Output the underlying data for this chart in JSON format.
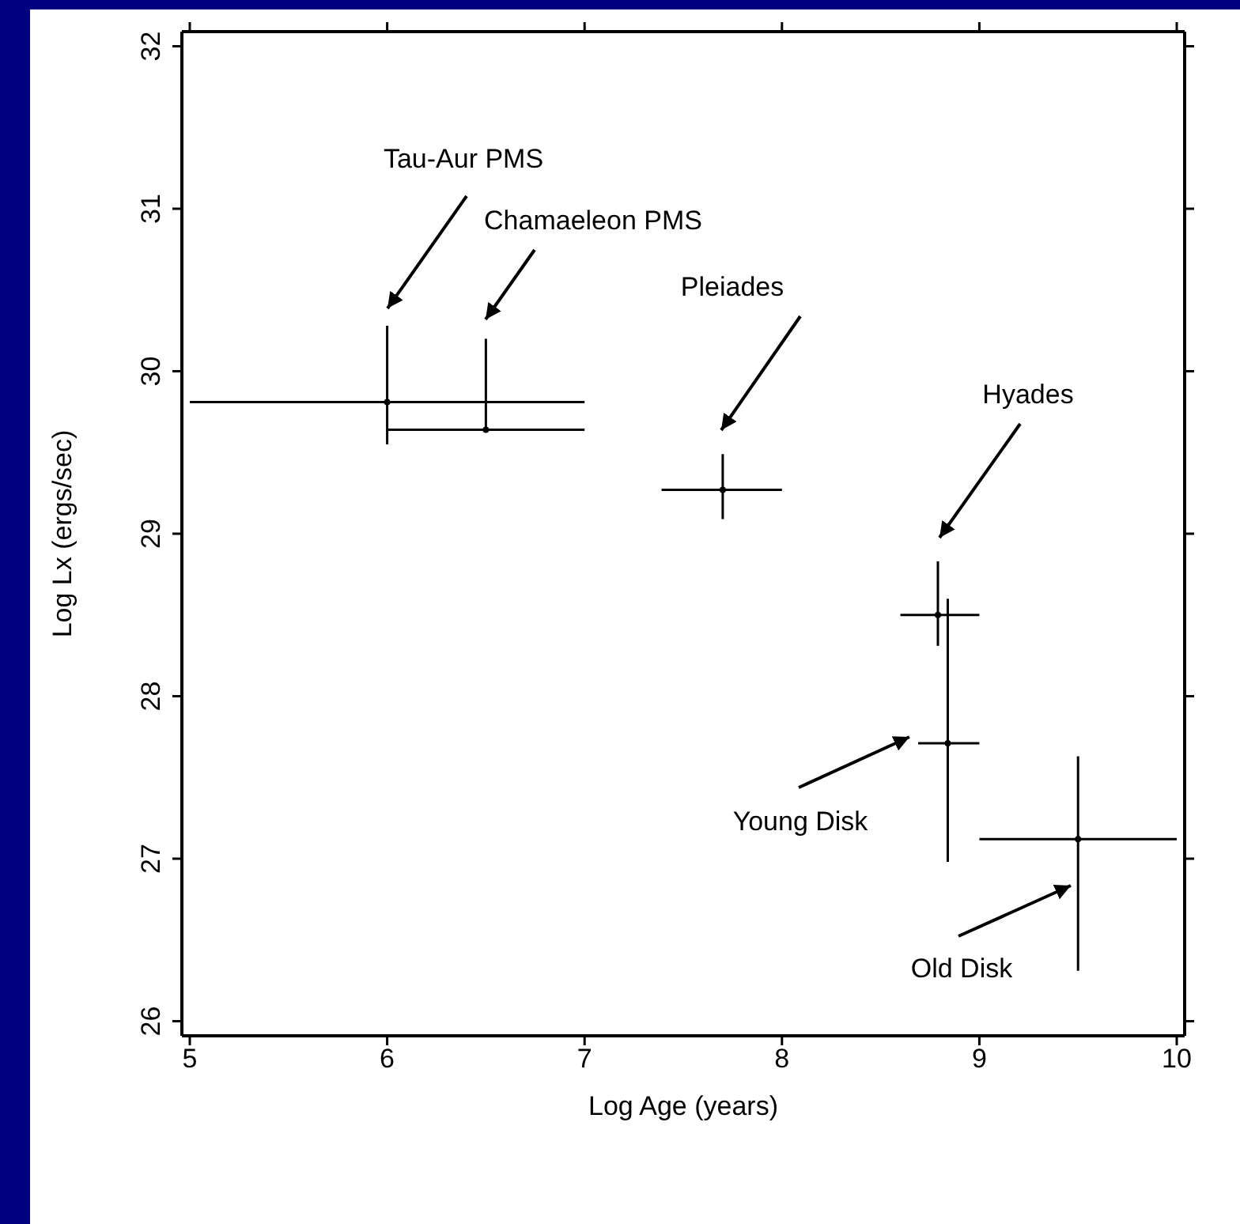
{
  "chart_data": {
    "type": "scatter",
    "xlabel": "Log Age (years)",
    "ylabel": "Log Lx (ergs/sec)",
    "x": [
      6.0,
      6.5,
      7.7,
      8.79,
      8.84,
      9.5
    ],
    "values": [
      29.81,
      29.64,
      29.27,
      28.5,
      27.71,
      27.12
    ],
    "xerrors": [
      [
        5.0,
        7.0
      ],
      [
        6.0,
        7.0
      ],
      [
        7.39,
        8.0
      ],
      [
        8.6,
        9.0
      ],
      [
        8.69,
        9.0
      ],
      [
        9.0,
        10.0
      ]
    ],
    "errors": [
      [
        29.55,
        30.28
      ],
      [
        29.64,
        30.2
      ],
      [
        29.09,
        29.49
      ],
      [
        28.31,
        28.83
      ],
      [
        26.98,
        28.6
      ],
      [
        26.31,
        27.63
      ]
    ],
    "color": "#000000",
    "xlim": [
      4.96,
      10.04
    ],
    "xticks": [
      5,
      6,
      7,
      8,
      9,
      10
    ],
    "ylim": [
      25.91,
      32.09
    ],
    "yticks": [
      26,
      27,
      28,
      29,
      30,
      31,
      32
    ],
    "legend": false,
    "annotations": [
      "Tau-Aur PMS",
      "Chamaeleon PMS",
      "Pleiades",
      "Hyades",
      "Young Disk",
      "Old Disk"
    ]
  }
}
